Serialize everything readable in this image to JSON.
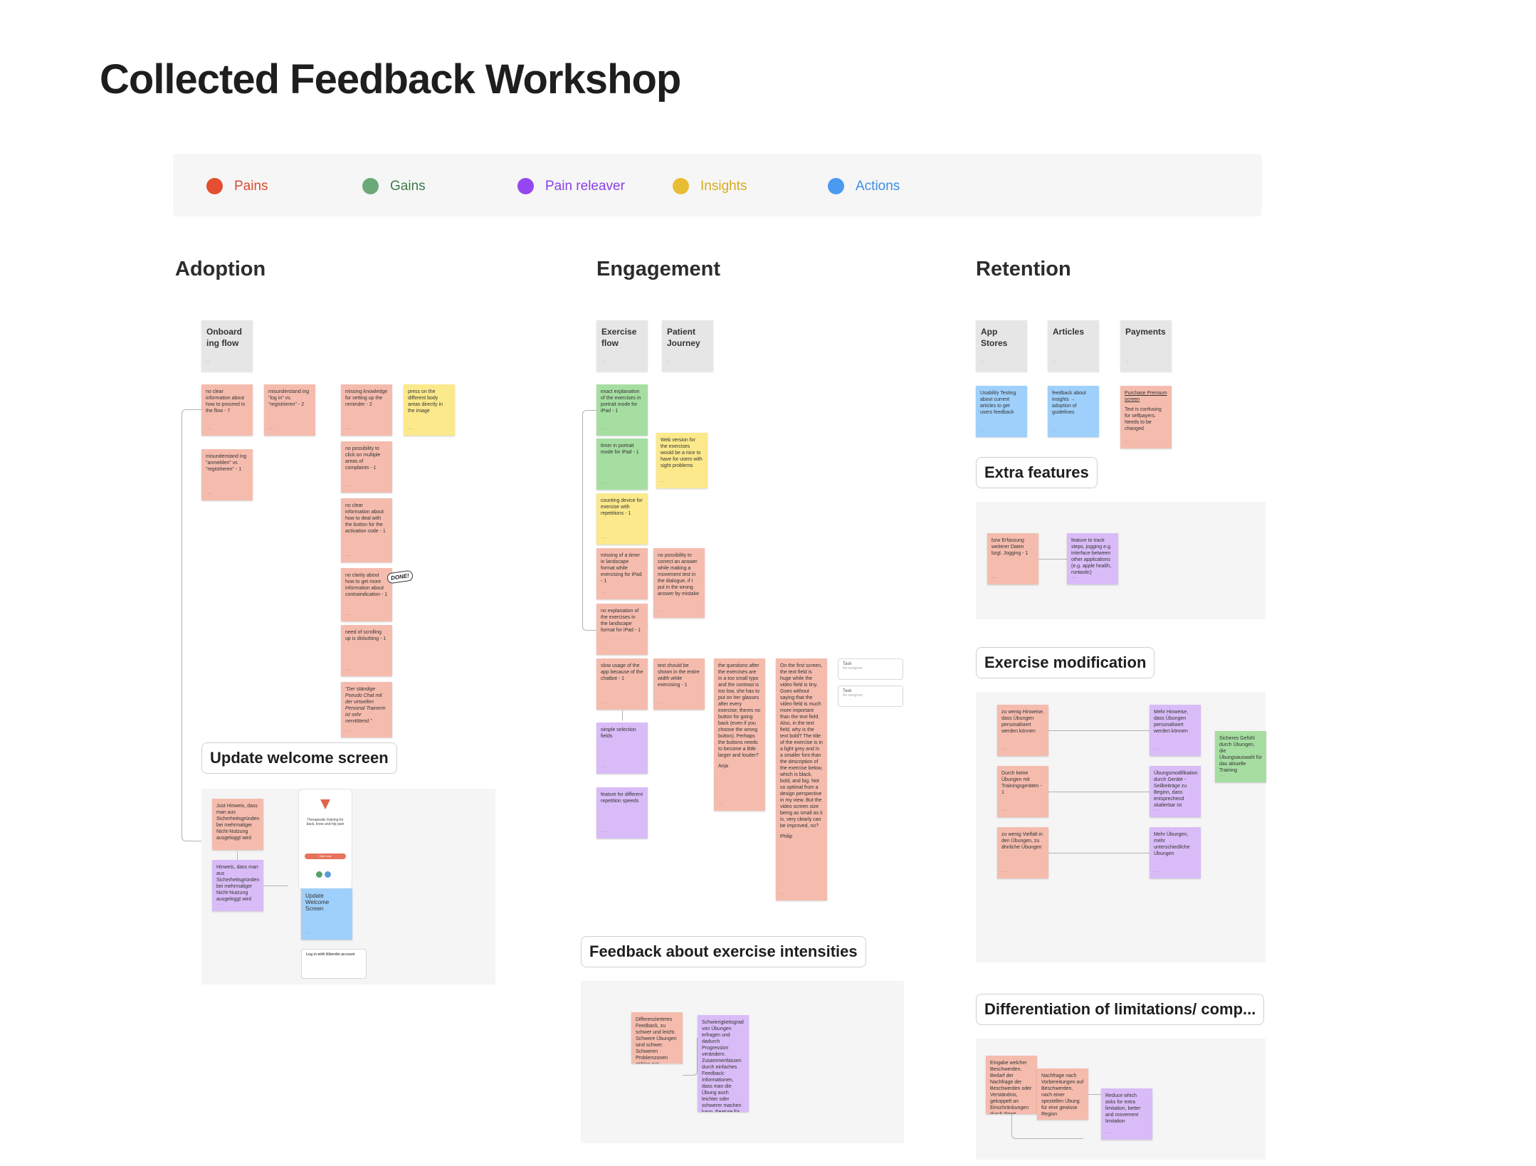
{
  "page": {
    "title": "Collected Feedback Workshop"
  },
  "legend": [
    {
      "label": "Pains",
      "color": "#e34f30"
    },
    {
      "label": "Gains",
      "color": "#6aa978"
    },
    {
      "label": "Pain releaver",
      "color": "#9447f0"
    },
    {
      "label": "Insights",
      "color": "#e9bd33"
    },
    {
      "label": "Actions",
      "color": "#4a9bf0"
    }
  ],
  "sections": {
    "adoption": {
      "title": "Adoption",
      "header": "Onboard ing flow",
      "notes": [
        "no clear information about how to proceed in the flow - 7",
        "misunderstand ing \"log in\" vs. \"registrieren\" - 2",
        "misunderstand ing \"anmelden\" vs \"registrieren\" - 1",
        "missing knowledge for setting up the reminder - 2",
        "press on the different body areas directly in the image",
        "no possibility to click on multiple areas of complaints - 1",
        "no clear information about how to deal with the button for the activation code - 1",
        "no clarity about how to get more information about contraindication - 1",
        "need of scrolling up is disturbing - 1",
        "\"Der ständige Pseudo Chat mit der virtuellen Personal Trainerin ist sehr nervtötend.\""
      ],
      "done_badge": "DONE!",
      "welcome_label": "Update welcome screen",
      "welcome_notes": [
        "Just Hinweis, dass man aus Sicherheitsgründen bei mehrmaliger Nicht-Nutzung ausgeloggt wird",
        "Hinweis, dass man aus Sicherheitsgründen bei mehrmaliger Nicht-Nutzung ausgeloggt wird",
        "Update Welcome Screen"
      ],
      "phone_text": "Therapeutic training for back, knee and hip pain",
      "phone_button": "Start now",
      "phone_card_title": "Log in with Alberdin account"
    },
    "engagement": {
      "title": "Engagement",
      "headers": [
        "Exercise flow",
        "Patient Journey"
      ],
      "notes": [
        "exact explanation of the exercises in portrait mode for iPad - 1",
        "Web version for the exercises would be a nice to have for users with sight problems",
        "timer in portrait mode for iPad - 1",
        "counting device for exercise with repetitions - 1",
        "missing of a timer in landscape format while exercising for iPad - 1",
        "no possibility to correct an answer while making a movement test in the dialogue, if I put in the wrong answer by mistake",
        "no explanation of the exercises in the landscape format for iPad - 1",
        "slow usage of the app because of the chatbot - 1",
        "text should be shown in the entire width while exercising - 1",
        "the questions after the exercises are in a too small typo and the contrast is too low, she has to put on her glasses after every exercise; theres no button for going back (even if you choose the wrong button). Perhaps the buttons needs to become a little larger and louder?",
        "Anja",
        "On the first screen, the text field is huge while the video field is tiny. Goes without saying that the video field is much more important than the text field. Also, in the text field, why is the text bold? The title of the exercise is in a light grey and in a smaller font than the description of the exercise below, which is black, bold, and big. Not so optimal from a design perspective in my view. But the video screen size being as small as it is, very clearly can be improved, no?",
        "Philip",
        "simple selection fields",
        "feature for different repetition speeds"
      ],
      "tasks": [
        "Task",
        "Task"
      ],
      "task_sub": "No assignee",
      "intensity_label": "Feedback about exercise intensities",
      "intensity_notes": [
        "Differenzierteres Feedback, zu schwer und leicht. Schwere Übungen sind schwer. Schweren Problemzonen zählen gut.",
        "Schwierigkeitsgrad von Übungen erfragen und dadurch Progression verändern. Zusammenfassen durch einfaches Feedback: Informationen, dass man die Übung auch leichter oder schwerer machen kann. Feature für die Übung selbstständig anpassen?"
      ]
    },
    "retention": {
      "title": "Retention",
      "headers": [
        "App Stores",
        "Articles",
        "Payments"
      ],
      "notes": [
        "Usability Testing about current articles to get users feedback",
        "feedback about insights → adoption of guidelines",
        "Purchase Premium screen",
        "Text is confusing for selfpayers. Needs to be changed"
      ],
      "extra_label": "Extra features",
      "extra_notes": [
        "bzw Erfassung weiterer Daten bzgl. Jogging - 1",
        "feature to track steps, jogging e.g. interface between other applications (e.g. apple health, runtastic)"
      ],
      "modification_label": "Exercise modification",
      "modification_notes": [
        "zu wenig Hinweise, dass Übungen personalisiert werden können",
        "Mehr Hinweise, dass Übungen personalisiert werden können",
        "Durch keine Übungen mit Trainingsgeräten - 1",
        "Übungsmodifikation durch Geräte - Seilbeiträge zu Beginn, dass entsprechend skalierbar ist",
        "zu wenig Vielfalt in den Übungen, zu ähnliche Übungen",
        "Mehr Übungen, mehr unterschiedliche Übungen",
        "Sicheres Gefühl durch Übungen, die Übungsauswahl für das aktuelle Training"
      ],
      "limitations_label": "Differentiation of limitations/ comp...",
      "limitations_notes": [
        "Eingabe welcher Beschwerden, Bedarf der Nachfrage der Beschwerden oder Verständnis, gekoppelt an Einschränkungen durch Sport",
        "Nachfrage nach Vorbereitungen auf Beschwerden, nach einer speziellen Übung für eine gewisse Region",
        "Reduce which asks for extra limitation, better and movement limitation"
      ]
    }
  }
}
